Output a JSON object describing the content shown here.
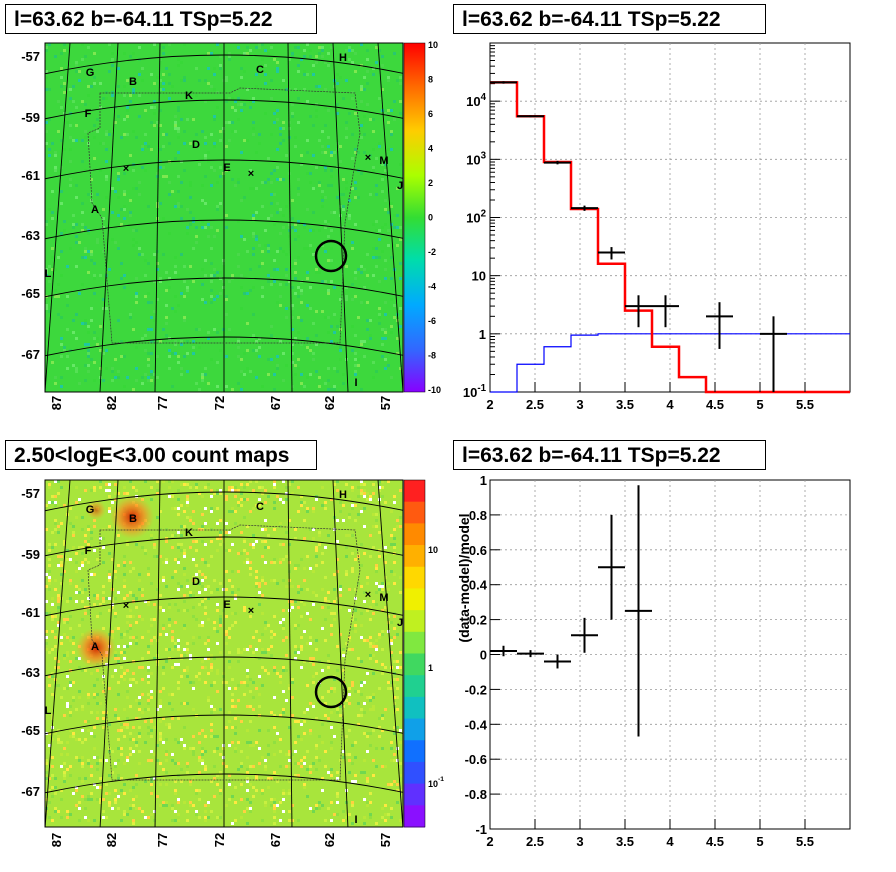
{
  "panels": {
    "map_residual": {
      "title": "l=63.62 b=-64.11 TSp=5.22"
    },
    "spectrum": {
      "title": "l=63.62 b=-64.11 TSp=5.22"
    },
    "map_counts": {
      "title": "2.50<logE<3.00 count maps"
    },
    "residual": {
      "title": "l=63.62 b=-64.11 TSp=5.22"
    }
  },
  "colors": {
    "data": "#000000",
    "model_total": "#ff0000",
    "model_source": "#0000ff",
    "map_background_residual": "#3ed83e",
    "map_background_counts": "#a6e83a"
  },
  "chart_data": [
    {
      "type": "heatmap",
      "title": "l=63.62 b=-64.11 TSp=5.22",
      "x_ticks": [
        "87",
        "82",
        "77",
        "72",
        "67",
        "62",
        "57"
      ],
      "y_ticks": [
        "-57",
        "-59",
        "-61",
        "-63",
        "-65",
        "-67"
      ],
      "colorbar_ticks": [
        "10",
        "8",
        "6",
        "4",
        "2",
        "0",
        "-2",
        "-4",
        "-6",
        "-8",
        "-10"
      ],
      "zlim": [
        -10,
        10
      ],
      "source_labels": [
        "G",
        "B",
        "C",
        "H",
        "K",
        "F",
        "D",
        "M",
        "E",
        "J",
        "A",
        "L",
        "I"
      ],
      "marked_source": "circle"
    },
    {
      "type": "line",
      "title": "l=63.62 b=-64.11 TSp=5.22",
      "xlim": [
        2,
        6
      ],
      "ylim": [
        0.1,
        100000
      ],
      "y_scale": "log",
      "grid": true,
      "x_ticks": [
        "2",
        "2.5",
        "3",
        "3.5",
        "4",
        "4.5",
        "5",
        "5.5"
      ],
      "y_ticks": [
        "10^-1",
        "1",
        "10",
        "10^2",
        "10^3",
        "10^4"
      ],
      "series": [
        {
          "kind": "data_points",
          "x": [
            2.15,
            2.45,
            2.75,
            3.05,
            3.35,
            3.65,
            3.95,
            4.55,
            5.15
          ],
          "xerr": [
            0.15,
            0.15,
            0.15,
            0.15,
            0.15,
            0.15,
            0.15,
            0.15,
            0.15
          ],
          "y": [
            21000,
            5500,
            880,
            145,
            25,
            3,
            3,
            2,
            1
          ],
          "ylo": [
            20000,
            5300,
            820,
            130,
            19,
            1.3,
            1.3,
            0.55,
            0.1
          ],
          "yhi": [
            22000,
            5700,
            940,
            160,
            31,
            4.6,
            4.6,
            3.5,
            2.0
          ]
        },
        {
          "kind": "model_total_hist",
          "edges": [
            2.0,
            2.3,
            2.6,
            2.9,
            3.2,
            3.5,
            3.8,
            4.1,
            4.4,
            6.0
          ],
          "values": [
            21000,
            5500,
            900,
            140,
            16,
            2.5,
            0.6,
            0.18,
            0.1
          ]
        },
        {
          "kind": "model_source_hist",
          "edges": [
            2.0,
            2.3,
            2.6,
            2.9,
            3.2,
            6.0
          ],
          "values": [
            0.1,
            0.3,
            0.6,
            0.95,
            1.0
          ]
        }
      ]
    },
    {
      "type": "heatmap",
      "title": "2.50<logE<3.00 count maps",
      "x_ticks": [
        "87",
        "82",
        "77",
        "72",
        "67",
        "62",
        "57"
      ],
      "y_ticks": [
        "-57",
        "-59",
        "-61",
        "-63",
        "-65",
        "-67"
      ],
      "colorbar_ticks": [
        "10",
        "1",
        "10^-1"
      ],
      "z_scale": "log",
      "source_labels": [
        "G",
        "B",
        "C",
        "H",
        "K",
        "F",
        "D",
        "M",
        "E",
        "J",
        "A",
        "L",
        "I"
      ],
      "marked_source": "circle"
    },
    {
      "type": "scatter",
      "title": "l=63.62 b=-64.11 TSp=5.22",
      "ylabel": "(data-model)/model",
      "xlim": [
        2,
        6
      ],
      "ylim": [
        -1,
        1
      ],
      "grid": true,
      "x_ticks": [
        "2",
        "2.5",
        "3",
        "3.5",
        "4",
        "4.5",
        "5",
        "5.5"
      ],
      "y_ticks": [
        "1",
        "0.8",
        "0.6",
        "0.4",
        "0.2",
        "0",
        "-0.2",
        "-0.4",
        "-0.6",
        "-0.8",
        "-1"
      ],
      "x": [
        2.15,
        2.45,
        2.75,
        3.05,
        3.35,
        3.65
      ],
      "xerr": [
        0.15,
        0.15,
        0.15,
        0.15,
        0.15,
        0.15
      ],
      "y": [
        0.02,
        0.005,
        -0.04,
        0.11,
        0.5,
        0.25
      ],
      "yerr": [
        0.03,
        0.02,
        0.04,
        0.1,
        0.3,
        0.72
      ]
    }
  ]
}
